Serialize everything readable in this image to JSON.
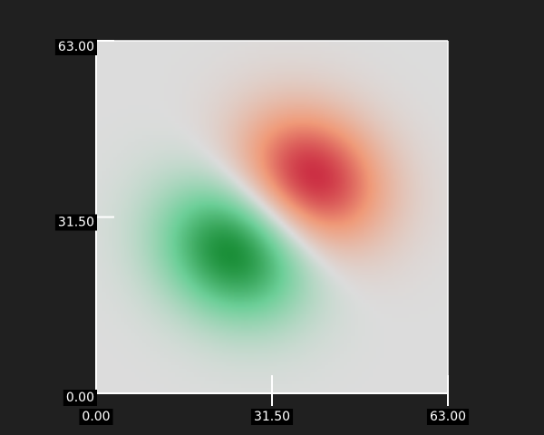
{
  "chart_data": {
    "type": "heatmap",
    "title": "",
    "xlabel": "",
    "ylabel": "",
    "xlim": [
      0,
      63
    ],
    "ylim": [
      0,
      63
    ],
    "x_ticks": [
      "0.00",
      "31.50",
      "63.00"
    ],
    "y_ticks": [
      "0.00",
      "31.50",
      "63.00"
    ],
    "x_tick_values": [
      0,
      31.5,
      63
    ],
    "y_tick_values": [
      0,
      31.5,
      63
    ],
    "grid": false,
    "colormap": {
      "negative": "#12882e",
      "neutral": "#dcdcdc",
      "positive": "#c8243e",
      "mid_positive": "#f09a78",
      "mid_negative": "#6ccf98"
    },
    "field": {
      "description_free": true,
      "blobs": [
        {
          "sign": 1,
          "center": [
            38.5,
            38.5
          ],
          "sigma": [
            9.5,
            8.0
          ],
          "rotation_deg": -35,
          "amplitude": 1.0
        },
        {
          "sign": -1,
          "center": [
            24.5,
            25.5
          ],
          "sigma": [
            9.5,
            8.0
          ],
          "rotation_deg": -35,
          "amplitude": 1.0
        }
      ]
    }
  },
  "colors": {
    "background": "#202020",
    "axis": "#ffffff",
    "label_bg": "#000000",
    "label_text": "#ffffff"
  }
}
